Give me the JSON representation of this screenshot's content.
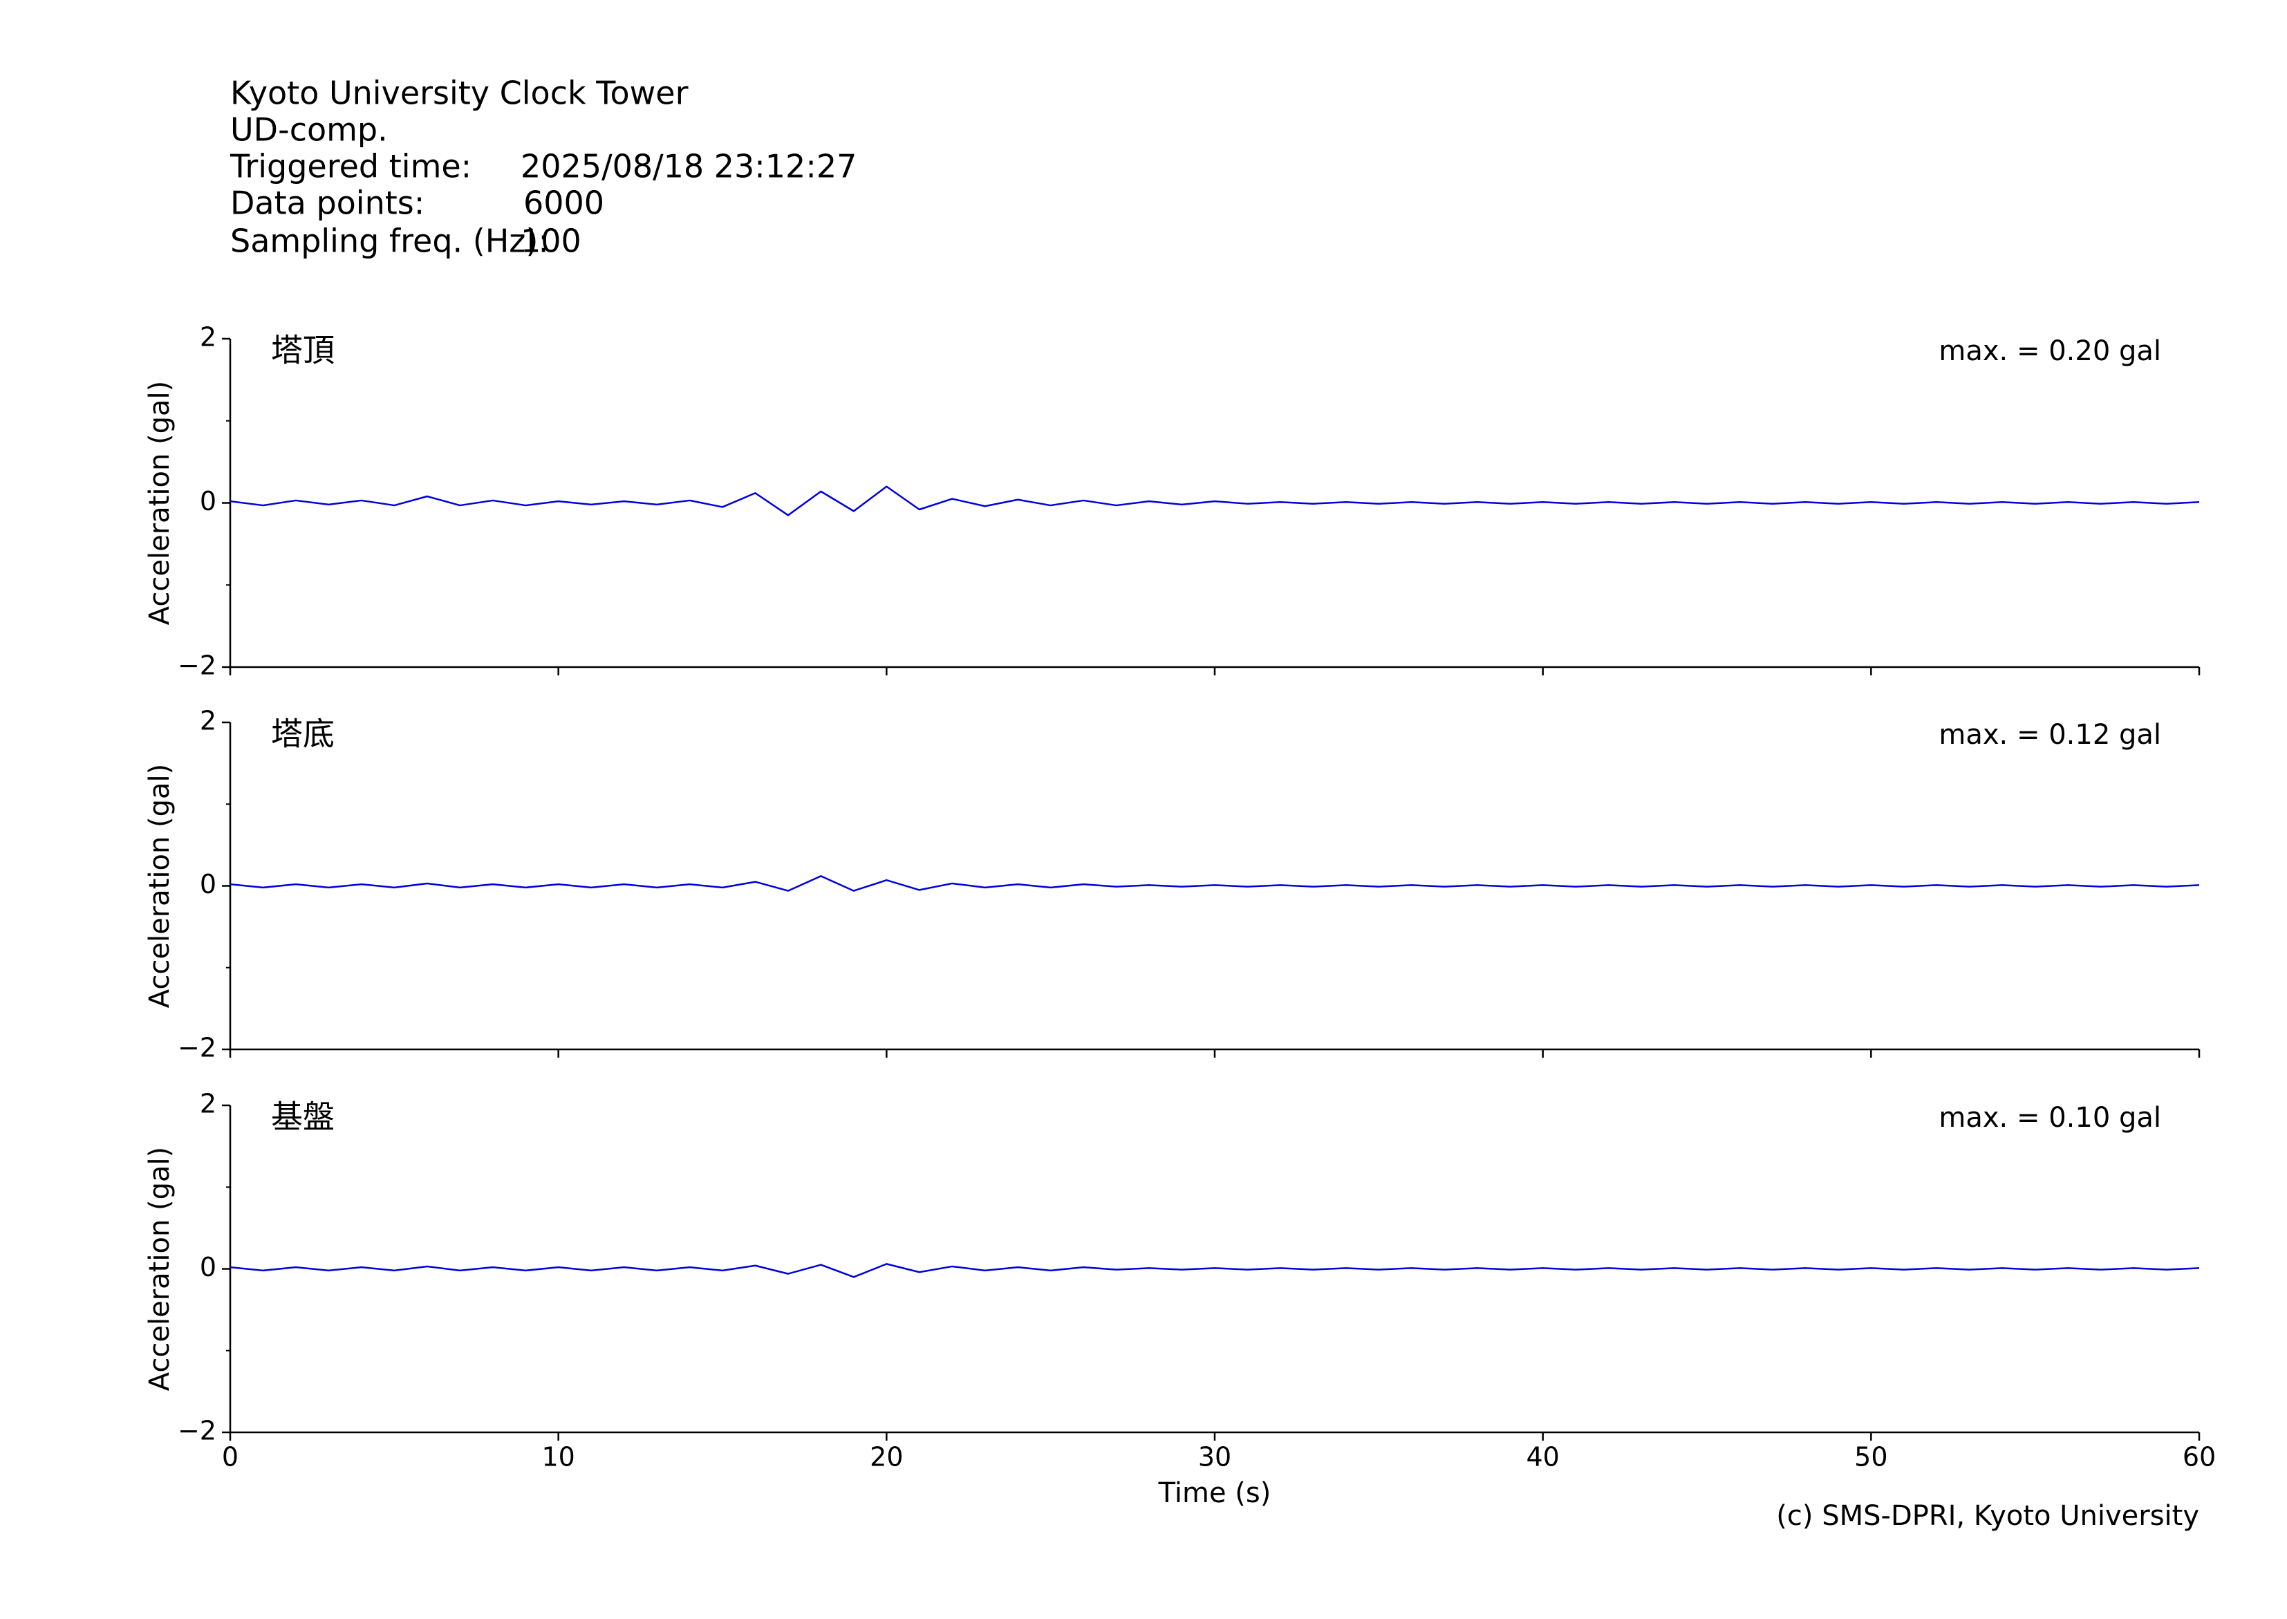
{
  "header": {
    "station": "Kyoto University Clock Tower",
    "component": "UD-comp.",
    "fields": [
      {
        "label": "Triggered time:",
        "value": "2025/08/18 23:12:27"
      },
      {
        "label": "Data points:",
        "value": "6000"
      },
      {
        "label": "Sampling freq. (Hz):",
        "value": "100"
      }
    ]
  },
  "credit": "(c) SMS-DPRI, Kyoto University",
  "chart_data": [
    {
      "type": "line",
      "label": "塔頂",
      "annotation": "max. = 0.20 gal",
      "ylabel": "Acceleration (gal)",
      "ylim": [
        -2,
        2
      ],
      "yticks": [
        {
          "value": -2,
          "label": "−2"
        },
        0,
        2
      ],
      "yminorticks": [
        -1,
        1
      ],
      "xlim": [
        0,
        60
      ],
      "xticks": [
        0,
        10,
        20,
        30,
        40,
        50,
        60
      ],
      "xticklabels": false,
      "x": [
        0,
        1,
        2,
        3,
        4,
        5,
        6,
        7,
        8,
        9,
        10,
        11,
        12,
        13,
        14,
        15,
        16,
        17,
        18,
        19,
        20,
        21,
        22,
        23,
        24,
        25,
        26,
        27,
        28,
        29,
        30,
        31,
        32,
        33,
        34,
        35,
        36,
        37,
        38,
        39,
        40,
        41,
        42,
        43,
        44,
        45,
        46,
        47,
        48,
        49,
        50,
        51,
        52,
        53,
        54,
        55,
        56,
        57,
        58,
        59,
        60
      ],
      "series": [
        {
          "color": "#0000dd",
          "values": [
            0.02,
            -0.03,
            0.03,
            -0.02,
            0.03,
            -0.03,
            0.08,
            -0.03,
            0.03,
            -0.03,
            0.02,
            -0.02,
            0.02,
            -0.02,
            0.03,
            -0.05,
            0.12,
            -0.15,
            0.14,
            -0.1,
            0.2,
            -0.08,
            0.05,
            -0.04,
            0.04,
            -0.03,
            0.03,
            -0.03,
            0.02,
            -0.02,
            0.02,
            -0.01,
            0.01,
            -0.01,
            0.01,
            -0.01,
            0.01,
            -0.01,
            0.01,
            -0.01,
            0.01,
            -0.01,
            0.01,
            -0.01,
            0.01,
            -0.01,
            0.01,
            -0.01,
            0.01,
            -0.01,
            0.01,
            -0.01,
            0.01,
            -0.01,
            0.01,
            -0.01,
            0.01,
            -0.01,
            0.01,
            -0.01,
            0.01
          ]
        }
      ]
    },
    {
      "type": "line",
      "label": "塔底",
      "annotation": "max. = 0.12 gal",
      "ylabel": "Acceleration (gal)",
      "ylim": [
        -2,
        2
      ],
      "yticks": [
        {
          "value": -2,
          "label": "−2"
        },
        0,
        2
      ],
      "yminorticks": [
        -1,
        1
      ],
      "xlim": [
        0,
        60
      ],
      "xticks": [
        0,
        10,
        20,
        30,
        40,
        50,
        60
      ],
      "xticklabels": false,
      "x": [
        0,
        1,
        2,
        3,
        4,
        5,
        6,
        7,
        8,
        9,
        10,
        11,
        12,
        13,
        14,
        15,
        16,
        17,
        18,
        19,
        20,
        21,
        22,
        23,
        24,
        25,
        26,
        27,
        28,
        29,
        30,
        31,
        32,
        33,
        34,
        35,
        36,
        37,
        38,
        39,
        40,
        41,
        42,
        43,
        44,
        45,
        46,
        47,
        48,
        49,
        50,
        51,
        52,
        53,
        54,
        55,
        56,
        57,
        58,
        59,
        60
      ],
      "series": [
        {
          "color": "#0000dd",
          "values": [
            0.02,
            -0.02,
            0.02,
            -0.02,
            0.02,
            -0.02,
            0.03,
            -0.02,
            0.02,
            -0.02,
            0.02,
            -0.02,
            0.02,
            -0.02,
            0.02,
            -0.02,
            0.05,
            -0.06,
            0.12,
            -0.06,
            0.07,
            -0.05,
            0.03,
            -0.02,
            0.02,
            -0.02,
            0.02,
            -0.01,
            0.01,
            -0.01,
            0.01,
            -0.01,
            0.01,
            -0.01,
            0.01,
            -0.01,
            0.01,
            -0.01,
            0.01,
            -0.01,
            0.01,
            -0.01,
            0.01,
            -0.01,
            0.01,
            -0.01,
            0.01,
            -0.01,
            0.01,
            -0.01,
            0.01,
            -0.01,
            0.01,
            -0.01,
            0.01,
            -0.01,
            0.01,
            -0.01,
            0.01,
            -0.01,
            0.01
          ]
        }
      ]
    },
    {
      "type": "line",
      "label": "基盤",
      "annotation": "max. = 0.10 gal",
      "ylabel": "Acceleration (gal)",
      "xlabel": "Time (s)",
      "ylim": [
        -2,
        2
      ],
      "yticks": [
        {
          "value": -2,
          "label": "−2"
        },
        0,
        2
      ],
      "yminorticks": [
        -1,
        1
      ],
      "xlim": [
        0,
        60
      ],
      "xticks": [
        0,
        10,
        20,
        30,
        40,
        50,
        60
      ],
      "xticklabels": true,
      "x": [
        0,
        1,
        2,
        3,
        4,
        5,
        6,
        7,
        8,
        9,
        10,
        11,
        12,
        13,
        14,
        15,
        16,
        17,
        18,
        19,
        20,
        21,
        22,
        23,
        24,
        25,
        26,
        27,
        28,
        29,
        30,
        31,
        32,
        33,
        34,
        35,
        36,
        37,
        38,
        39,
        40,
        41,
        42,
        43,
        44,
        45,
        46,
        47,
        48,
        49,
        50,
        51,
        52,
        53,
        54,
        55,
        56,
        57,
        58,
        59,
        60
      ],
      "series": [
        {
          "color": "#0000dd",
          "values": [
            0.02,
            -0.02,
            0.02,
            -0.02,
            0.02,
            -0.02,
            0.03,
            -0.02,
            0.02,
            -0.02,
            0.02,
            -0.02,
            0.02,
            -0.02,
            0.02,
            -0.02,
            0.04,
            -0.06,
            0.05,
            -0.1,
            0.06,
            -0.04,
            0.03,
            -0.02,
            0.02,
            -0.02,
            0.02,
            -0.01,
            0.01,
            -0.01,
            0.01,
            -0.01,
            0.01,
            -0.01,
            0.01,
            -0.01,
            0.01,
            -0.01,
            0.01,
            -0.01,
            0.01,
            -0.01,
            0.01,
            -0.01,
            0.01,
            -0.01,
            0.01,
            -0.01,
            0.01,
            -0.01,
            0.01,
            -0.01,
            0.01,
            -0.01,
            0.01,
            -0.01,
            0.01,
            -0.01,
            0.01,
            -0.01,
            0.01
          ]
        }
      ]
    }
  ]
}
